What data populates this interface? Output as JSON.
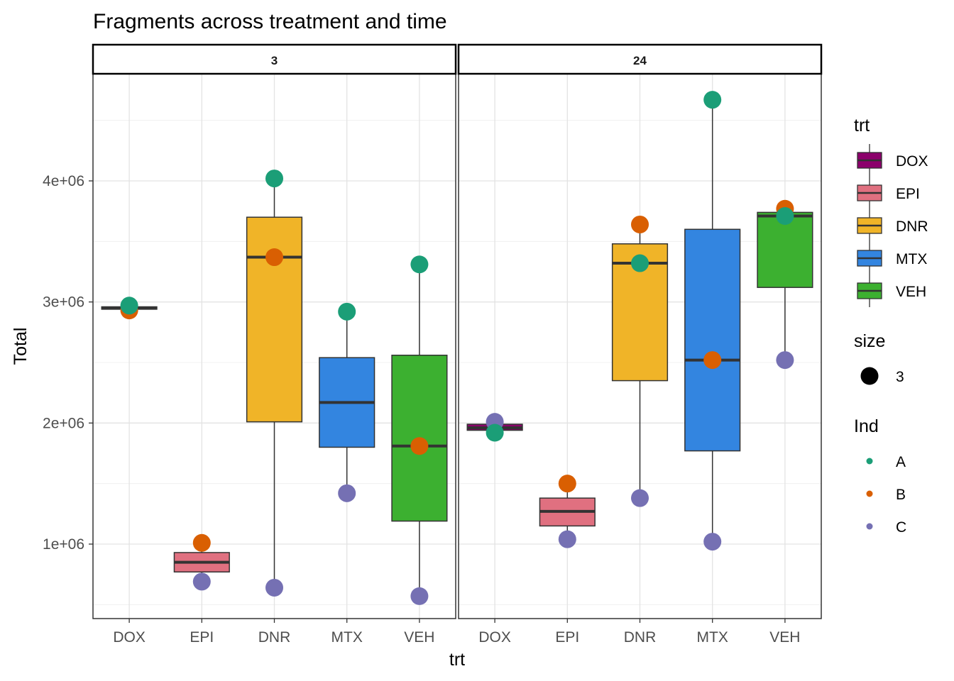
{
  "chart_data": {
    "type": "box",
    "title": "Fragments across treatment and time",
    "xlabel": "trt",
    "ylabel": "Total",
    "ylim": [
      400000,
      4800000
    ],
    "yticks": [
      1000000,
      2000000,
      3000000,
      4000000
    ],
    "ytick_labels": [
      "1e+06",
      "2e+06",
      "3e+06",
      "4e+06"
    ],
    "categories": [
      "DOX",
      "EPI",
      "DNR",
      "MTX",
      "VEH"
    ],
    "grid": true,
    "legend_position": "right",
    "fill_colors": {
      "DOX": "#8B006B",
      "EPI": "#E07080",
      "DNR": "#F0B428",
      "MTX": "#3385E0",
      "VEH": "#3CB030"
    },
    "point_colors": {
      "A": "#1B9E77",
      "B": "#D95F02",
      "C": "#7570B3"
    },
    "facets": [
      {
        "label": "3",
        "boxes": [
          {
            "trt": "DOX",
            "q1": 2940000,
            "median": 2950000,
            "q3": 2960000,
            "whisker_low": 2930000,
            "whisker_high": 2970000
          },
          {
            "trt": "EPI",
            "q1": 770000,
            "median": 850000,
            "q3": 930000,
            "whisker_low": 690000,
            "whisker_high": 1010000
          },
          {
            "trt": "DNR",
            "q1": 2010000,
            "median": 3370000,
            "q3": 3700000,
            "whisker_low": 640000,
            "whisker_high": 4020000
          },
          {
            "trt": "MTX",
            "q1": 1800000,
            "median": 2170000,
            "q3": 2540000,
            "whisker_low": 1420000,
            "whisker_high": 2920000
          },
          {
            "trt": "VEH",
            "q1": 1190000,
            "median": 1810000,
            "q3": 2560000,
            "whisker_low": 570000,
            "whisker_high": 3310000
          }
        ],
        "points": [
          {
            "trt": "DOX",
            "ind": "B",
            "y": 2930000
          },
          {
            "trt": "DOX",
            "ind": "A",
            "y": 2970000
          },
          {
            "trt": "EPI",
            "ind": "B",
            "y": 1010000
          },
          {
            "trt": "EPI",
            "ind": "C",
            "y": 690000
          },
          {
            "trt": "DNR",
            "ind": "A",
            "y": 4020000
          },
          {
            "trt": "DNR",
            "ind": "B",
            "y": 3370000
          },
          {
            "trt": "DNR",
            "ind": "C",
            "y": 640000
          },
          {
            "trt": "MTX",
            "ind": "A",
            "y": 2920000
          },
          {
            "trt": "MTX",
            "ind": "C",
            "y": 1420000
          },
          {
            "trt": "VEH",
            "ind": "A",
            "y": 3310000
          },
          {
            "trt": "VEH",
            "ind": "B",
            "y": 1810000
          },
          {
            "trt": "VEH",
            "ind": "C",
            "y": 570000
          }
        ]
      },
      {
        "label": "24",
        "boxes": [
          {
            "trt": "DOX",
            "q1": 1940000,
            "median": 1960000,
            "q3": 1990000,
            "whisker_low": 1920000,
            "whisker_high": 2010000
          },
          {
            "trt": "EPI",
            "q1": 1150000,
            "median": 1270000,
            "q3": 1380000,
            "whisker_low": 1040000,
            "whisker_high": 1500000
          },
          {
            "trt": "DNR",
            "q1": 2350000,
            "median": 3320000,
            "q3": 3480000,
            "whisker_low": 1380000,
            "whisker_high": 3640000
          },
          {
            "trt": "MTX",
            "q1": 1770000,
            "median": 2520000,
            "q3": 3600000,
            "whisker_low": 1020000,
            "whisker_high": 4670000
          },
          {
            "trt": "VEH",
            "q1": 3120000,
            "median": 3710000,
            "q3": 3740000,
            "whisker_low": 2520000,
            "whisker_high": 3770000
          }
        ],
        "points": [
          {
            "trt": "DOX",
            "ind": "C",
            "y": 2010000
          },
          {
            "trt": "DOX",
            "ind": "A",
            "y": 1920000
          },
          {
            "trt": "EPI",
            "ind": "B",
            "y": 1500000
          },
          {
            "trt": "EPI",
            "ind": "C",
            "y": 1040000
          },
          {
            "trt": "DNR",
            "ind": "B",
            "y": 3640000
          },
          {
            "trt": "DNR",
            "ind": "A",
            "y": 3320000
          },
          {
            "trt": "DNR",
            "ind": "C",
            "y": 1380000
          },
          {
            "trt": "MTX",
            "ind": "A",
            "y": 4670000
          },
          {
            "trt": "MTX",
            "ind": "B",
            "y": 2520000
          },
          {
            "trt": "MTX",
            "ind": "C",
            "y": 1020000
          },
          {
            "trt": "VEH",
            "ind": "B",
            "y": 3770000
          },
          {
            "trt": "VEH",
            "ind": "A",
            "y": 3710000
          },
          {
            "trt": "VEH",
            "ind": "C",
            "y": 2520000
          }
        ]
      }
    ],
    "legends": [
      {
        "title": "trt",
        "kind": "fill",
        "items": [
          "DOX",
          "EPI",
          "DNR",
          "MTX",
          "VEH"
        ]
      },
      {
        "title": "size",
        "kind": "size",
        "items": [
          "3"
        ]
      },
      {
        "title": "Ind",
        "kind": "color",
        "items": [
          "A",
          "B",
          "C"
        ]
      }
    ]
  }
}
